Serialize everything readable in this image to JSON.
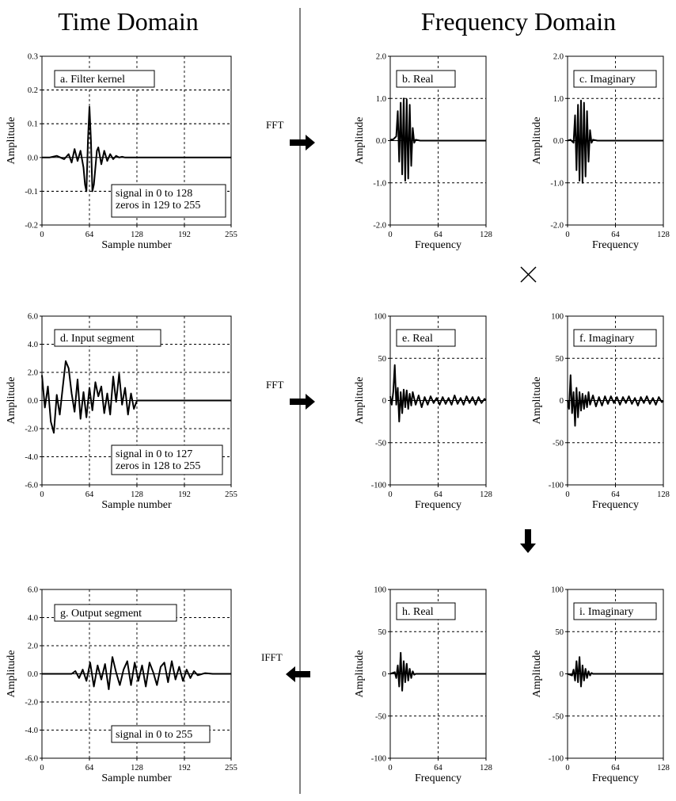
{
  "headers": {
    "time": "Time Domain",
    "frequency": "Frequency Domain"
  },
  "ops": {
    "fft1": "FFT",
    "fft2": "FFT",
    "ifft": "IFFT"
  },
  "times_symbol": "×",
  "panels": {
    "a": {
      "label": "a.  Filter kernel",
      "note": [
        "signal in 0 to 128",
        "zeros in 129 to 255"
      ],
      "ylabel": "Amplitude",
      "xlabel": "Sample number",
      "yticks": [
        "0.3",
        "0.2",
        "0.1",
        "0.0",
        "-0.1",
        "-0.2"
      ],
      "xticks": [
        "0",
        "64",
        "128",
        "192",
        "255"
      ]
    },
    "b": {
      "label": "b.  Real",
      "ylabel": "Amplitude",
      "xlabel": "Frequency",
      "yticks": [
        "2.0",
        "1.0",
        "0.0",
        "-1.0",
        "-2.0"
      ],
      "xticks": [
        "0",
        "64",
        "128"
      ]
    },
    "c": {
      "label": "c.  Imaginary",
      "ylabel": "Amplitude",
      "xlabel": "Frequency",
      "yticks": [
        "2.0",
        "1.0",
        "0.0",
        "-1.0",
        "-2.0"
      ],
      "xticks": [
        "0",
        "64",
        "128"
      ]
    },
    "d": {
      "label": "d.  Input segment",
      "note": [
        "signal in 0 to 127",
        "zeros in 128 to 255"
      ],
      "ylabel": "Amplitude",
      "xlabel": "Sample number",
      "yticks": [
        "6.0",
        "4.0",
        "2.0",
        "0.0",
        "-2.0",
        "-4.0",
        "-6.0"
      ],
      "xticks": [
        "0",
        "64",
        "128",
        "192",
        "255"
      ]
    },
    "e": {
      "label": "e.  Real",
      "ylabel": "Amplitude",
      "xlabel": "Frequency",
      "yticks": [
        "100",
        "50",
        "0",
        "-50",
        "-100"
      ],
      "xticks": [
        "0",
        "64",
        "128"
      ]
    },
    "f": {
      "label": "f.  Imaginary",
      "ylabel": "Amplitude",
      "xlabel": "Frequency",
      "yticks": [
        "100",
        "50",
        "0",
        "-50",
        "-100"
      ],
      "xticks": [
        "0",
        "64",
        "128"
      ]
    },
    "g": {
      "label": "g.  Output segment",
      "note": [
        "signal in 0 to 255"
      ],
      "ylabel": "Amplitude",
      "xlabel": "Sample number",
      "yticks": [
        "6.0",
        "4.0",
        "2.0",
        "0.0",
        "-2.0",
        "-4.0",
        "-6.0"
      ],
      "xticks": [
        "0",
        "64",
        "128",
        "192",
        "255"
      ]
    },
    "h": {
      "label": "h.  Real",
      "ylabel": "Amplitude",
      "xlabel": "Frequency",
      "yticks": [
        "100",
        "50",
        "0",
        "-50",
        "-100"
      ],
      "xticks": [
        "0",
        "64",
        "128"
      ]
    },
    "i": {
      "label": "i.  Imaginary",
      "ylabel": "Amplitude",
      "xlabel": "Frequency",
      "yticks": [
        "100",
        "50",
        "0",
        "-50",
        "-100"
      ],
      "xticks": [
        "0",
        "64",
        "128"
      ]
    }
  },
  "chart_data": [
    {
      "panel": "a",
      "type": "line",
      "xlim": [
        0,
        255
      ],
      "ylim": [
        -0.2,
        0.3
      ],
      "x": [
        0,
        10,
        20,
        30,
        36,
        40,
        44,
        48,
        52,
        56,
        58,
        60,
        62,
        64,
        66,
        68,
        70,
        72,
        74,
        76,
        80,
        84,
        88,
        92,
        96,
        100,
        104,
        108,
        112,
        120,
        128,
        140,
        160,
        200,
        255
      ],
      "y": [
        0,
        0,
        0.005,
        -0.005,
        0.01,
        -0.015,
        0.025,
        -0.01,
        0.02,
        -0.03,
        -0.08,
        -0.1,
        0.05,
        0.15,
        0.05,
        -0.1,
        -0.08,
        -0.03,
        0.02,
        0.03,
        -0.02,
        0.02,
        -0.01,
        0.01,
        -0.005,
        0.005,
        0,
        0.002,
        0,
        0,
        0,
        0,
        0,
        0,
        0
      ]
    },
    {
      "panel": "b",
      "type": "line",
      "xlim": [
        0,
        128
      ],
      "ylim": [
        -2.0,
        2.0
      ],
      "x": [
        0,
        4,
        8,
        10,
        12,
        14,
        16,
        18,
        20,
        22,
        24,
        26,
        28,
        30,
        32,
        34,
        40,
        60,
        128
      ],
      "y": [
        0.02,
        0.03,
        0.1,
        0.7,
        -0.5,
        0.9,
        -0.8,
        1.0,
        -0.95,
        0.98,
        -0.9,
        0.85,
        -0.6,
        0.3,
        -0.05,
        0.02,
        0,
        0,
        0
      ]
    },
    {
      "panel": "c",
      "type": "line",
      "xlim": [
        0,
        128
      ],
      "ylim": [
        -2.0,
        2.0
      ],
      "x": [
        0,
        4,
        8,
        10,
        12,
        14,
        16,
        18,
        20,
        22,
        24,
        26,
        28,
        30,
        32,
        34,
        40,
        60,
        128
      ],
      "y": [
        0,
        0.02,
        -0.05,
        0.6,
        -0.7,
        0.85,
        -0.95,
        0.95,
        -1.0,
        0.9,
        -0.85,
        0.7,
        -0.5,
        0.25,
        -0.05,
        0.02,
        0,
        0,
        0
      ]
    },
    {
      "panel": "d",
      "type": "line",
      "xlim": [
        0,
        255
      ],
      "ylim": [
        -6.0,
        6.0
      ],
      "x": [
        0,
        4,
        8,
        12,
        16,
        20,
        24,
        28,
        32,
        36,
        40,
        44,
        48,
        52,
        56,
        60,
        64,
        68,
        72,
        76,
        80,
        84,
        88,
        92,
        96,
        100,
        104,
        108,
        112,
        116,
        120,
        124,
        128,
        140,
        200,
        255
      ],
      "y": [
        1.8,
        -0.5,
        1.0,
        -1.5,
        -2.3,
        0.4,
        -1.0,
        0.9,
        2.8,
        2.3,
        0.5,
        -0.8,
        1.5,
        -1.3,
        0.6,
        -1.2,
        0.9,
        -0.7,
        1.3,
        0.3,
        1.0,
        -0.9,
        0.5,
        -1.0,
        1.7,
        -0.1,
        1.9,
        -0.3,
        0.9,
        -1.0,
        0.5,
        -0.6,
        0,
        0,
        0,
        0
      ]
    },
    {
      "panel": "e",
      "type": "line",
      "xlim": [
        0,
        128
      ],
      "ylim": [
        -100,
        100
      ],
      "x": [
        0,
        2,
        4,
        6,
        8,
        10,
        12,
        14,
        16,
        18,
        20,
        22,
        24,
        26,
        28,
        30,
        34,
        38,
        42,
        46,
        50,
        54,
        58,
        62,
        66,
        70,
        74,
        78,
        82,
        86,
        90,
        94,
        98,
        102,
        106,
        110,
        114,
        118,
        122,
        126,
        128
      ],
      "y": [
        5,
        -5,
        10,
        42,
        -5,
        15,
        -25,
        10,
        -15,
        13,
        -8,
        12,
        -10,
        8,
        -6,
        10,
        -5,
        6,
        -8,
        4,
        -5,
        5,
        -3,
        3,
        -5,
        4,
        -4,
        3,
        -5,
        6,
        -4,
        3,
        -5,
        5,
        -3,
        4,
        -5,
        4,
        -3,
        2,
        0
      ]
    },
    {
      "panel": "f",
      "type": "line",
      "xlim": [
        0,
        128
      ],
      "ylim": [
        -100,
        100
      ],
      "x": [
        0,
        2,
        4,
        6,
        8,
        10,
        12,
        14,
        16,
        18,
        20,
        22,
        24,
        26,
        28,
        30,
        34,
        38,
        42,
        46,
        50,
        54,
        58,
        62,
        66,
        70,
        74,
        78,
        82,
        86,
        90,
        94,
        98,
        102,
        106,
        110,
        114,
        118,
        122,
        126,
        128
      ],
      "y": [
        0,
        -10,
        30,
        -15,
        10,
        -30,
        15,
        -20,
        10,
        -12,
        8,
        -10,
        6,
        -8,
        10,
        -5,
        6,
        -7,
        4,
        -6,
        5,
        -4,
        5,
        -3,
        4,
        -5,
        4,
        -3,
        5,
        -4,
        3,
        -6,
        4,
        -3,
        5,
        -4,
        3,
        -5,
        4,
        -2,
        0
      ]
    },
    {
      "panel": "g",
      "type": "line",
      "xlim": [
        0,
        255
      ],
      "ylim": [
        -6.0,
        6.0
      ],
      "x": [
        0,
        20,
        40,
        45,
        50,
        55,
        60,
        65,
        70,
        75,
        80,
        85,
        90,
        95,
        100,
        105,
        110,
        115,
        120,
        125,
        130,
        135,
        140,
        145,
        150,
        155,
        160,
        165,
        170,
        175,
        180,
        185,
        190,
        195,
        200,
        205,
        210,
        220,
        230,
        255
      ],
      "y": [
        0,
        0,
        0,
        0.2,
        -0.3,
        0.3,
        -0.5,
        0.8,
        -0.9,
        0.6,
        -0.4,
        0.7,
        -1.1,
        1.2,
        0.1,
        -0.8,
        0.3,
        0.9,
        -0.8,
        0.8,
        -0.5,
        0.6,
        -0.9,
        0.8,
        0.1,
        -0.8,
        0.5,
        0.8,
        -0.6,
        0.9,
        -0.4,
        0.5,
        -0.5,
        0.3,
        -0.3,
        0.2,
        -0.1,
        0.05,
        0,
        0
      ]
    },
    {
      "panel": "h",
      "type": "line",
      "xlim": [
        0,
        128
      ],
      "ylim": [
        -100,
        100
      ],
      "x": [
        0,
        6,
        8,
        10,
        12,
        14,
        16,
        18,
        20,
        22,
        24,
        26,
        28,
        30,
        32,
        34,
        40,
        128
      ],
      "y": [
        0,
        2,
        -5,
        10,
        -15,
        25,
        -20,
        15,
        -10,
        12,
        -8,
        6,
        -5,
        3,
        -1,
        0,
        0,
        0
      ]
    },
    {
      "panel": "i",
      "type": "line",
      "xlim": [
        0,
        128
      ],
      "ylim": [
        -100,
        100
      ],
      "x": [
        0,
        6,
        8,
        10,
        12,
        14,
        16,
        18,
        20,
        22,
        24,
        26,
        28,
        30,
        32,
        34,
        40,
        128
      ],
      "y": [
        0,
        -2,
        5,
        -8,
        15,
        -10,
        20,
        -15,
        10,
        -8,
        6,
        -5,
        3,
        -2,
        1,
        0,
        0,
        0
      ]
    }
  ]
}
